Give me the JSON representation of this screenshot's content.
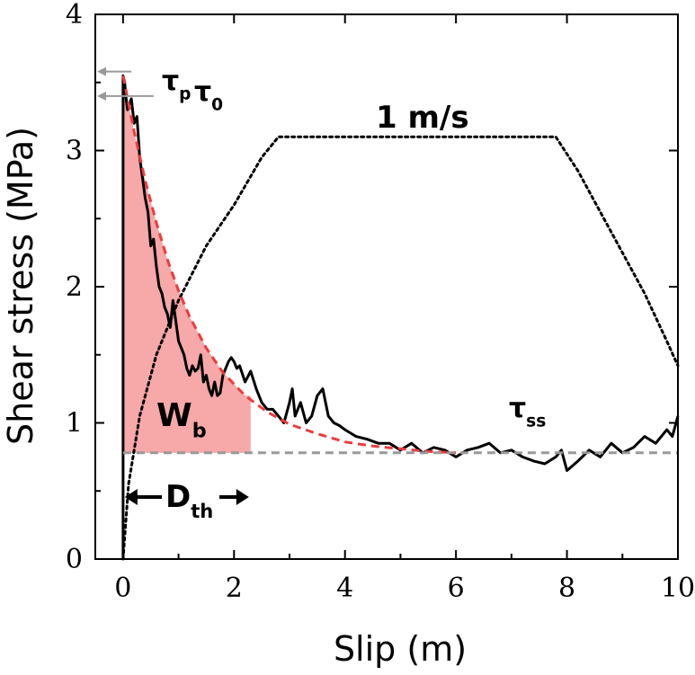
{
  "chart_data": {
    "type": "line",
    "title": "",
    "xlabel": "Slip (m)",
    "ylabel": "Shear stress (MPa)",
    "xlim": [
      -0.5,
      10
    ],
    "ylim": [
      0,
      4
    ],
    "xticks": [
      "0",
      "2",
      "4",
      "6",
      "8",
      "10"
    ],
    "yticks": [
      "0",
      "1",
      "2",
      "3",
      "4"
    ],
    "grid": false,
    "legend": "none",
    "series": [
      {
        "style": "solid",
        "color": "#000000",
        "x": [
          0.0,
          0.0,
          0.03,
          0.05,
          0.08,
          0.12,
          0.15,
          0.2,
          0.25,
          0.3,
          0.35,
          0.4,
          0.45,
          0.5,
          0.55,
          0.6,
          0.65,
          0.7,
          0.75,
          0.8,
          0.85,
          0.9,
          0.95,
          1.0,
          1.05,
          1.1,
          1.15,
          1.2,
          1.25,
          1.3,
          1.35,
          1.4,
          1.45,
          1.5,
          1.55,
          1.6,
          1.65,
          1.7,
          1.75,
          1.8,
          1.85,
          1.9,
          1.95,
          2.0,
          2.05,
          2.1,
          2.2,
          2.3,
          2.4,
          2.5,
          2.6,
          2.7,
          2.8,
          2.9,
          3.0,
          3.05,
          3.1,
          3.2,
          3.3,
          3.4,
          3.5,
          3.6,
          3.7,
          3.8,
          3.9,
          4.0,
          4.2,
          4.4,
          4.6,
          4.8,
          5.0,
          5.2,
          5.4,
          5.6,
          5.8,
          6.0,
          6.2,
          6.4,
          6.6,
          6.8,
          7.0,
          7.2,
          7.4,
          7.6,
          7.8,
          7.9,
          8.0,
          8.2,
          8.4,
          8.6,
          8.8,
          9.0,
          9.2,
          9.4,
          9.6,
          9.8,
          9.9,
          10.0
        ],
        "y": [
          0.0,
          3.55,
          3.5,
          3.4,
          3.3,
          3.35,
          3.38,
          3.2,
          3.25,
          2.95,
          2.8,
          2.65,
          2.55,
          2.3,
          2.35,
          2.15,
          2.0,
          1.95,
          1.85,
          1.8,
          1.7,
          1.9,
          1.75,
          1.6,
          1.55,
          1.5,
          1.4,
          1.35,
          1.42,
          1.38,
          1.4,
          1.5,
          1.3,
          1.35,
          1.25,
          1.2,
          1.3,
          1.2,
          1.22,
          1.35,
          1.4,
          1.45,
          1.48,
          1.45,
          1.4,
          1.42,
          1.3,
          1.38,
          1.25,
          1.15,
          1.1,
          1.1,
          1.05,
          1.0,
          1.15,
          1.25,
          1.05,
          1.15,
          1.0,
          1.05,
          1.2,
          1.25,
          1.05,
          1.0,
          0.98,
          0.95,
          0.9,
          0.88,
          0.85,
          0.85,
          0.8,
          0.85,
          0.78,
          0.82,
          0.8,
          0.75,
          0.8,
          0.82,
          0.85,
          0.78,
          0.8,
          0.75,
          0.72,
          0.7,
          0.75,
          0.8,
          0.65,
          0.72,
          0.8,
          0.75,
          0.85,
          0.78,
          0.82,
          0.9,
          0.85,
          0.95,
          0.9,
          1.05
        ]
      },
      {
        "style": "dotted",
        "color": "#000000",
        "x": [
          0.0,
          0.1,
          0.3,
          0.6,
          1.0,
          1.5,
          2.0,
          2.5,
          2.8,
          7.8,
          8.2,
          8.6,
          9.0,
          9.4,
          9.8,
          10.0
        ],
        "y": [
          0.0,
          0.55,
          1.05,
          1.5,
          1.9,
          2.3,
          2.6,
          2.95,
          3.1,
          3.1,
          2.85,
          2.55,
          2.25,
          1.95,
          1.6,
          1.42
        ]
      },
      {
        "style": "dashed-fit",
        "color": "#ee3b3b",
        "x": [
          0.0,
          0.2,
          0.4,
          0.6,
          0.8,
          1.0,
          1.2,
          1.5,
          1.8,
          2.2,
          2.6,
          3.0,
          3.5,
          4.0,
          4.5,
          5.0,
          5.5,
          6.0
        ],
        "y": [
          3.55,
          3.14,
          2.78,
          2.47,
          2.2,
          1.97,
          1.78,
          1.55,
          1.37,
          1.2,
          1.08,
          0.99,
          0.92,
          0.86,
          0.83,
          0.81,
          0.79,
          0.78
        ]
      },
      {
        "style": "dashed-baseline",
        "color": "#999999",
        "x": [
          0.0,
          10.0
        ],
        "y": [
          0.78,
          0.78
        ]
      }
    ],
    "annotations": {
      "tau_p_value": 3.58,
      "tau_0_value": 3.4,
      "d_th_end": 2.3,
      "wb_area_end": 2.3,
      "wb_color": "#f7a8a8",
      "wb_label_color": "#c0141c"
    },
    "labels": {
      "tau_p": "τ",
      "tau_p_sub": "p",
      "tau_0": "τ",
      "tau_0_sub": "0",
      "tau_ss": "τ",
      "tau_ss_sub": "ss",
      "velocity": "1 m/s",
      "wb": "W",
      "wb_sub": "b",
      "dth": "D",
      "dth_sub": "th"
    }
  }
}
